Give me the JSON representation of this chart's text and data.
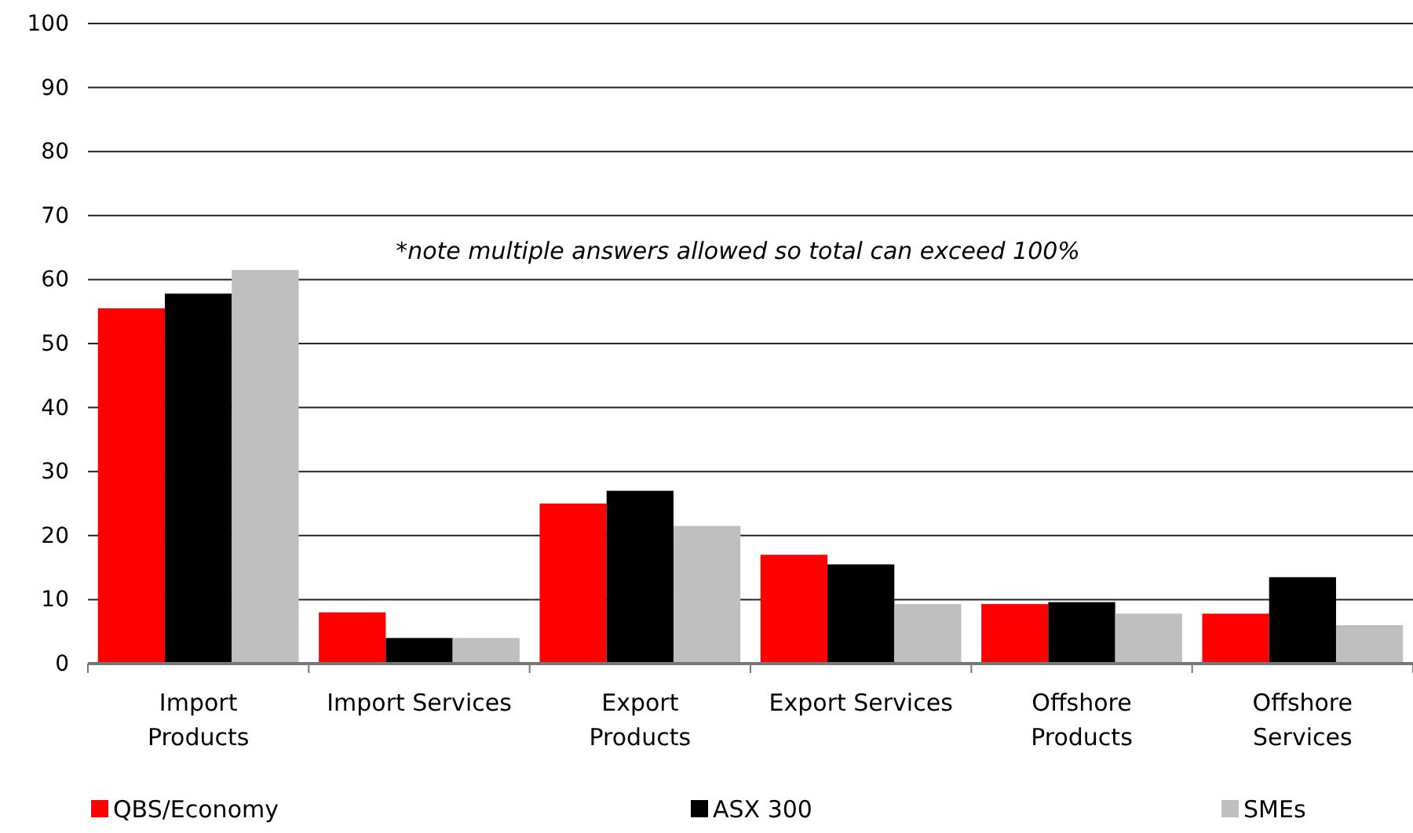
{
  "chart_data": {
    "type": "bar",
    "categories": [
      "Import Products",
      "Import Services",
      "Export Products",
      "Export Services",
      "Offshore Products",
      "Offshore Services"
    ],
    "series": [
      {
        "name": "QBS/Economy",
        "color": "#ff0000",
        "values": [
          55.5,
          8,
          25,
          17,
          9.3,
          7.8
        ]
      },
      {
        "name": "ASX 300",
        "color": "#000000",
        "values": [
          57.8,
          4,
          27,
          15.5,
          9.6,
          13.5
        ]
      },
      {
        "name": "SMEs",
        "color": "#bfbfbf",
        "values": [
          61.5,
          4,
          21.5,
          9.3,
          7.8,
          6
        ]
      }
    ],
    "ylim": [
      0,
      100
    ],
    "yticks": [
      0,
      10,
      20,
      30,
      40,
      50,
      60,
      70,
      80,
      90,
      100
    ],
    "grid": "y",
    "legend": "bottom",
    "annotations": [
      "*note multiple answers allowed so total can exceed 100%"
    ]
  }
}
